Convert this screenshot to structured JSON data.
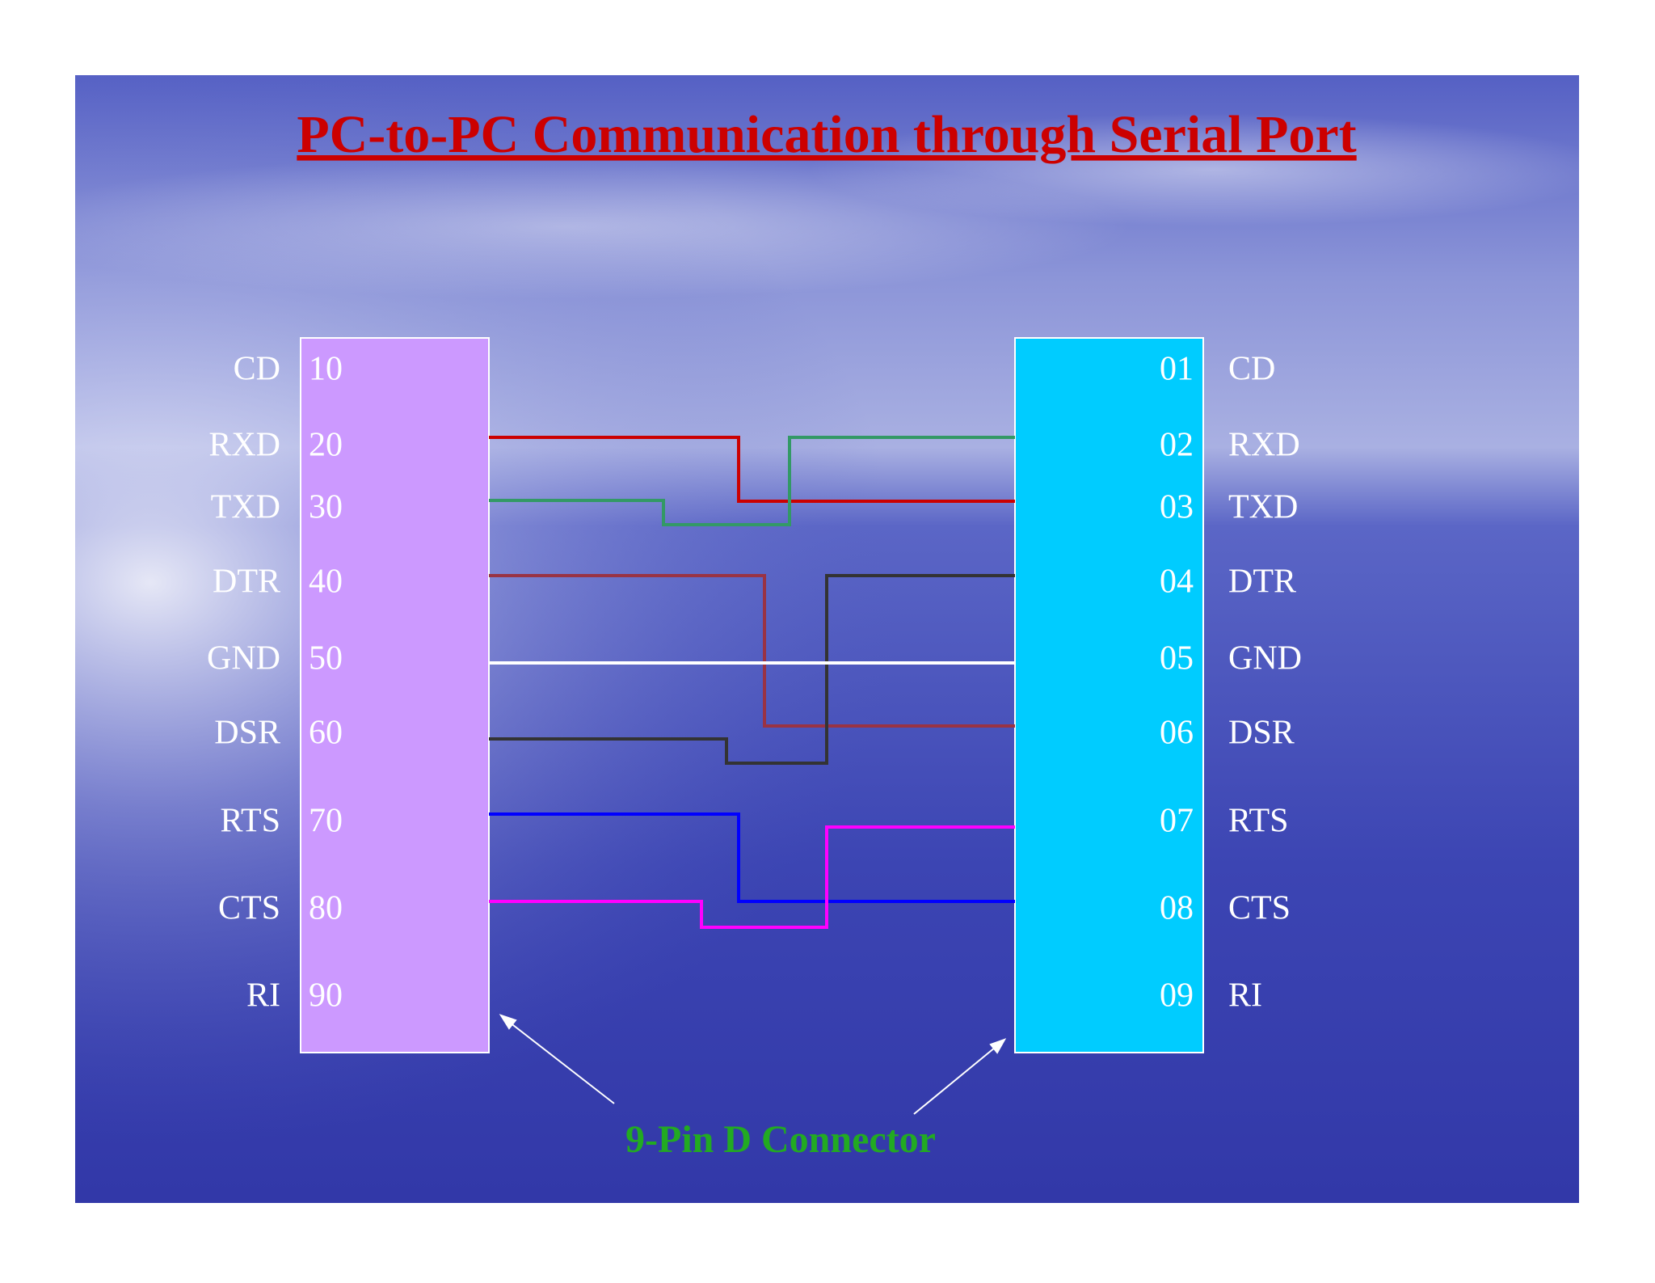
{
  "header": {
    "title": "PC-to-PC Communication through Serial Port"
  },
  "left_connector": {
    "pins": [
      {
        "signal": "CD",
        "pin": "10"
      },
      {
        "signal": "RXD",
        "pin": "20"
      },
      {
        "signal": "TXD",
        "pin": "30"
      },
      {
        "signal": "DTR",
        "pin": "40"
      },
      {
        "signal": "GND",
        "pin": "50"
      },
      {
        "signal": "DSR",
        "pin": "60"
      },
      {
        "signal": "RTS",
        "pin": "70"
      },
      {
        "signal": "CTS",
        "pin": "80"
      },
      {
        "signal": "RI",
        "pin": "90"
      }
    ]
  },
  "right_connector": {
    "pins": [
      {
        "signal": "CD",
        "pin": "01"
      },
      {
        "signal": "RXD",
        "pin": "02"
      },
      {
        "signal": "TXD",
        "pin": "03"
      },
      {
        "signal": "DTR",
        "pin": "04"
      },
      {
        "signal": "GND",
        "pin": "05"
      },
      {
        "signal": "DSR",
        "pin": "06"
      },
      {
        "signal": "RTS",
        "pin": "07"
      },
      {
        "signal": "CTS",
        "pin": "08"
      },
      {
        "signal": "RI",
        "pin": "09"
      }
    ]
  },
  "caption": "9-Pin D Connector"
}
